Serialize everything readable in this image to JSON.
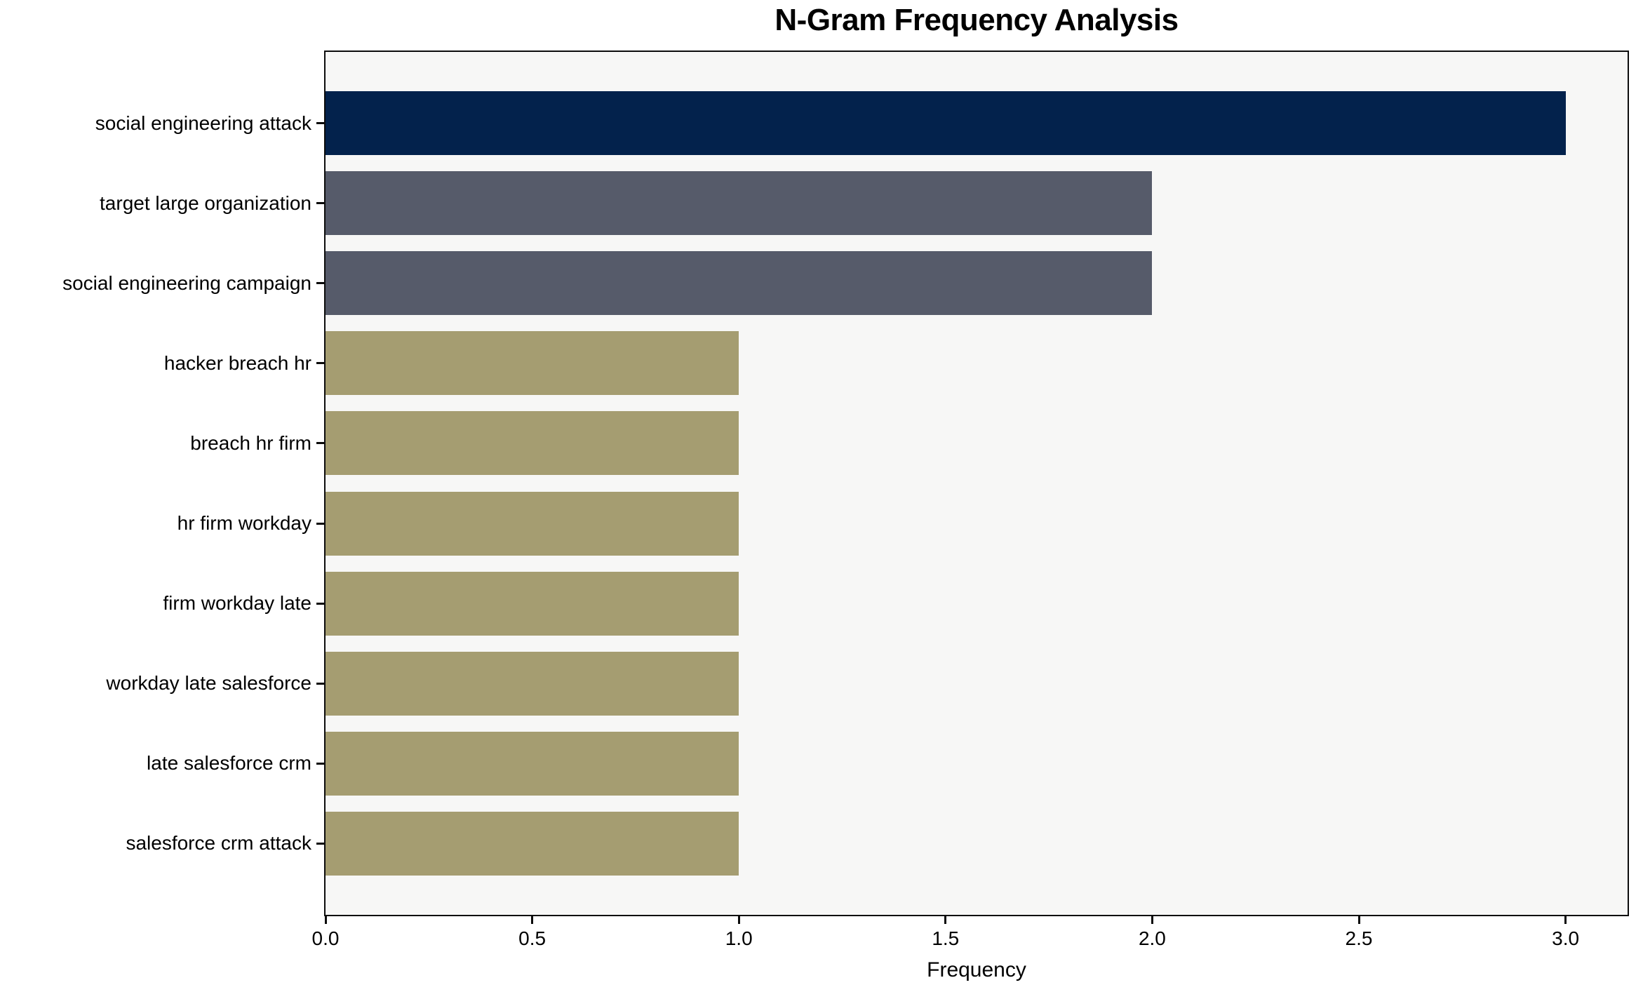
{
  "chart_data": {
    "type": "bar",
    "orientation": "horizontal",
    "title": "N-Gram Frequency Analysis",
    "xlabel": "Frequency",
    "ylabel": "",
    "categories": [
      "social engineering attack",
      "target large organization",
      "social engineering campaign",
      "hacker breach hr",
      "breach hr firm",
      "hr firm workday",
      "firm workday late",
      "workday late salesforce",
      "late salesforce crm",
      "salesforce crm attack"
    ],
    "values": [
      3,
      2,
      2,
      1,
      1,
      1,
      1,
      1,
      1,
      1
    ],
    "bar_colors": [
      "#03224c",
      "#565b6a",
      "#565b6a",
      "#a59d71",
      "#a59d71",
      "#a59d71",
      "#a59d71",
      "#a59d71",
      "#a59d71",
      "#a59d71"
    ],
    "xlim": [
      0,
      3.15
    ],
    "x_ticks": [
      0,
      0.5,
      1,
      1.5,
      2,
      2.5,
      3
    ],
    "x_tick_labels": [
      "0.0",
      "0.5",
      "1.0",
      "1.5",
      "2.0",
      "2.5",
      "3.0"
    ],
    "grid": false,
    "legend": false,
    "plot_background": "#f7f7f6",
    "figure_background": "#ffffff",
    "axis_color": "#0c0c0c"
  }
}
